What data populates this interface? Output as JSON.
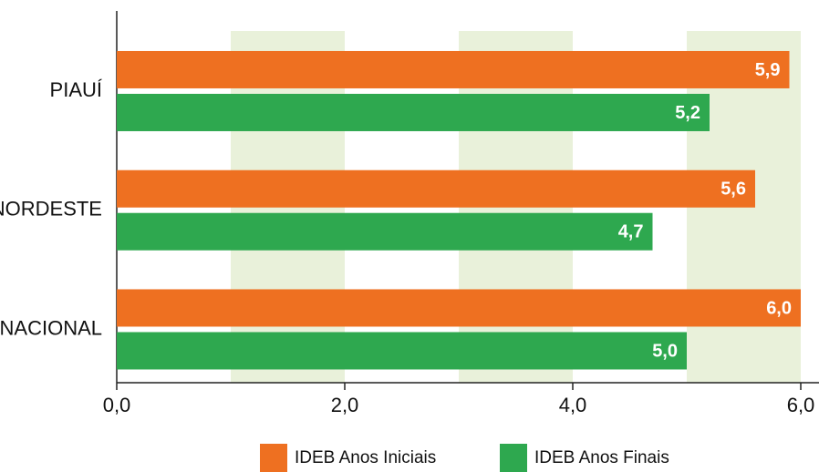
{
  "chart_data": {
    "type": "hbar",
    "categories": [
      "PIAUÍ",
      "NORDESTE",
      "NACIONAL"
    ],
    "series": [
      {
        "name": "IDEB Anos Iniciais",
        "color": "#ee7021",
        "values": [
          5.9,
          5.6,
          6.0
        ],
        "value_labels": [
          "5,9",
          "5,6",
          "6,0"
        ]
      },
      {
        "name": "IDEB Anos Finais",
        "color": "#2ea84f",
        "values": [
          5.2,
          4.7,
          5.0
        ],
        "value_labels": [
          "5,2",
          "4,7",
          "5,0"
        ]
      }
    ],
    "xlim": [
      0,
      6.0
    ],
    "xticks": [
      {
        "value": 0,
        "label": "0,0"
      },
      {
        "value": 2.0,
        "label": "2,0"
      },
      {
        "value": 4.0,
        "label": "4,0"
      },
      {
        "value": 6.0,
        "label": "6,0"
      }
    ],
    "band_color": "#e9f1da",
    "legend": "bottom"
  }
}
